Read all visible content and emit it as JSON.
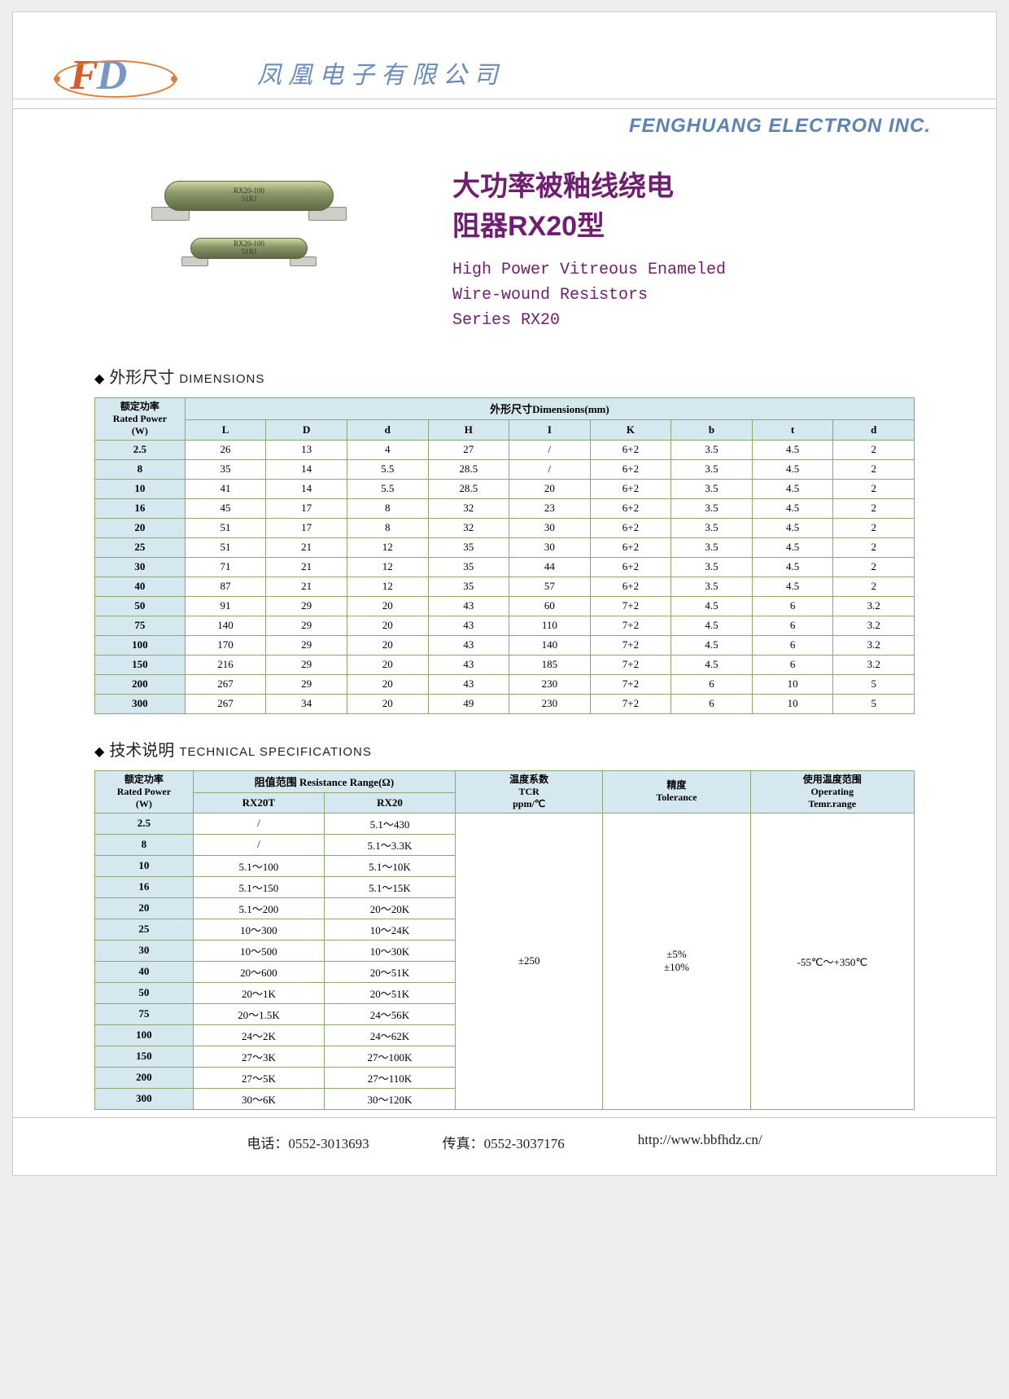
{
  "header": {
    "logo_f": "F",
    "logo_d": "D",
    "company_cn": "凤凰电子有限公司",
    "company_en": "FENGHUANG  ELECTRON INC."
  },
  "product": {
    "resistor_label_line1": "RX20-100",
    "resistor_label_line2": "51RJ",
    "title_cn_line1": "大功率被釉线绕电",
    "title_cn_line2": "阻器RX20型",
    "title_en_line1": "High Power Vitreous Enameled",
    "title_en_line2": "Wire-wound Resistors",
    "title_en_line3": "Series RX20"
  },
  "sections": {
    "dimensions_cn": "外形尺寸",
    "dimensions_en": "DIMENSIONS",
    "tech_cn": "技术说明",
    "tech_en": "TECHNICAL SPECIFICATIONS"
  },
  "dim_table": {
    "header_power_line1": "额定功率",
    "header_power_line2": "Rated Power",
    "header_power_line3": "(W)",
    "header_group": "外形尺寸Dimensions(mm)",
    "cols": [
      "L",
      "D",
      "d",
      "H",
      "I",
      "K",
      "b",
      "t",
      "d"
    ],
    "rows": [
      {
        "p": "2.5",
        "v": [
          "26",
          "13",
          "4",
          "27",
          "/",
          "6+2",
          "3.5",
          "4.5",
          "2"
        ]
      },
      {
        "p": "8",
        "v": [
          "35",
          "14",
          "5.5",
          "28.5",
          "/",
          "6+2",
          "3.5",
          "4.5",
          "2"
        ]
      },
      {
        "p": "10",
        "v": [
          "41",
          "14",
          "5.5",
          "28.5",
          "20",
          "6+2",
          "3.5",
          "4.5",
          "2"
        ]
      },
      {
        "p": "16",
        "v": [
          "45",
          "17",
          "8",
          "32",
          "23",
          "6+2",
          "3.5",
          "4.5",
          "2"
        ]
      },
      {
        "p": "20",
        "v": [
          "51",
          "17",
          "8",
          "32",
          "30",
          "6+2",
          "3.5",
          "4.5",
          "2"
        ]
      },
      {
        "p": "25",
        "v": [
          "51",
          "21",
          "12",
          "35",
          "30",
          "6+2",
          "3.5",
          "4.5",
          "2"
        ]
      },
      {
        "p": "30",
        "v": [
          "71",
          "21",
          "12",
          "35",
          "44",
          "6+2",
          "3.5",
          "4.5",
          "2"
        ]
      },
      {
        "p": "40",
        "v": [
          "87",
          "21",
          "12",
          "35",
          "57",
          "6+2",
          "3.5",
          "4.5",
          "2"
        ]
      },
      {
        "p": "50",
        "v": [
          "91",
          "29",
          "20",
          "43",
          "60",
          "7+2",
          "4.5",
          "6",
          "3.2"
        ]
      },
      {
        "p": "75",
        "v": [
          "140",
          "29",
          "20",
          "43",
          "110",
          "7+2",
          "4.5",
          "6",
          "3.2"
        ]
      },
      {
        "p": "100",
        "v": [
          "170",
          "29",
          "20",
          "43",
          "140",
          "7+2",
          "4.5",
          "6",
          "3.2"
        ]
      },
      {
        "p": "150",
        "v": [
          "216",
          "29",
          "20",
          "43",
          "185",
          "7+2",
          "4.5",
          "6",
          "3.2"
        ]
      },
      {
        "p": "200",
        "v": [
          "267",
          "29",
          "20",
          "43",
          "230",
          "7+2",
          "6",
          "10",
          "5"
        ]
      },
      {
        "p": "300",
        "v": [
          "267",
          "34",
          "20",
          "49",
          "230",
          "7+2",
          "6",
          "10",
          "5"
        ]
      }
    ]
  },
  "tech_table": {
    "header_power_line1": "额定功率",
    "header_power_line2": "Rated Power",
    "header_power_line3": "(W)",
    "header_range": "阻值范围 Resistance Range(Ω)",
    "header_rx20t": "RX20T",
    "header_rx20": "RX20",
    "header_tcr_line1": "温度系数",
    "header_tcr_line2": "TCR",
    "header_tcr_line3": "ppm/℃",
    "header_tol_line1": "精度",
    "header_tol_line2": "Tolerance",
    "header_temp_line1": "使用温度范围",
    "header_temp_line2": "Operating",
    "header_temp_line3": "Temr.range",
    "tcr_value": "±250",
    "tol_value_line1": "±5%",
    "tol_value_line2": "±10%",
    "temp_value": "-55℃～+350℃",
    "rows": [
      {
        "p": "2.5",
        "t": "/",
        "r": "5.1～430"
      },
      {
        "p": "8",
        "t": "/",
        "r": "5.1～3.3K"
      },
      {
        "p": "10",
        "t": "5.1～100",
        "r": "5.1～10K"
      },
      {
        "p": "16",
        "t": "5.1～150",
        "r": "5.1～15K"
      },
      {
        "p": "20",
        "t": "5.1～200",
        "r": "20～20K"
      },
      {
        "p": "25",
        "t": "10～300",
        "r": "10～24K"
      },
      {
        "p": "30",
        "t": "10～500",
        "r": "10～30K"
      },
      {
        "p": "40",
        "t": "20～600",
        "r": "20～51K"
      },
      {
        "p": "50",
        "t": "20～1K",
        "r": "20～51K"
      },
      {
        "p": "75",
        "t": "20～1.5K",
        "r": "24～56K"
      },
      {
        "p": "100",
        "t": "24～2K",
        "r": "24～62K"
      },
      {
        "p": "150",
        "t": "27～3K",
        "r": "27～100K"
      },
      {
        "p": "200",
        "t": "27～5K",
        "r": "27～110K"
      },
      {
        "p": "300",
        "t": "30～6K",
        "r": "30～120K"
      }
    ]
  },
  "footer": {
    "tel_label": "电话：",
    "tel_value": "0552-3013693",
    "fax_label": "传真：",
    "fax_value": "0552-3037176",
    "url": "http://www.bbfhdz.cn/"
  },
  "colors": {
    "brand_purple": "#701e6f",
    "brand_blue": "#5d82b4",
    "table_header_bg": "#d5e7ef",
    "table_border": "#8aa870"
  }
}
